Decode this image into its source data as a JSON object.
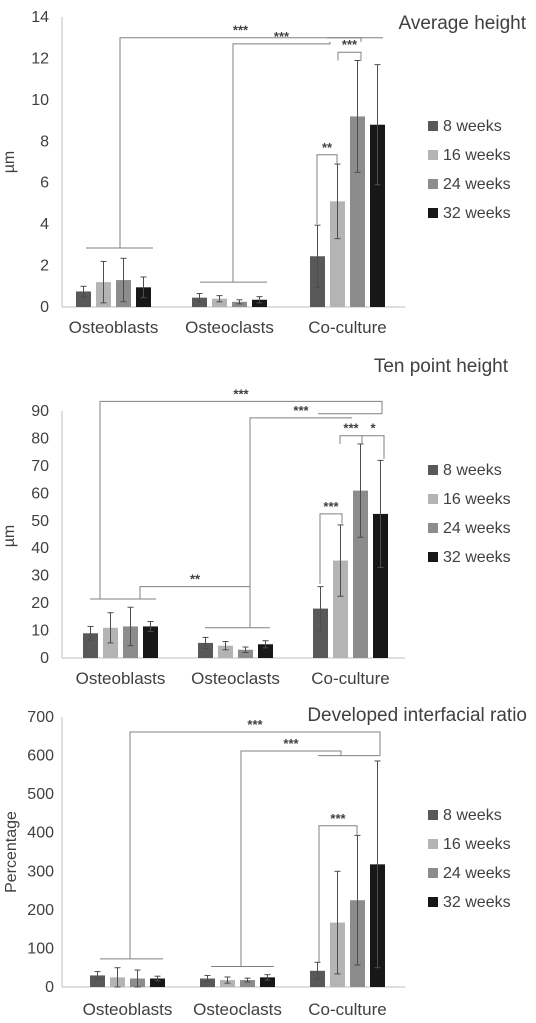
{
  "chart_data": [
    {
      "type": "bar",
      "title": "Average height",
      "ylabel": "µm",
      "xlabel": "",
      "ylim": [
        0,
        14
      ],
      "yticks": [
        "0",
        "2",
        "4",
        "6",
        "8",
        "10",
        "12",
        "14"
      ],
      "categories": [
        "Osteoblasts",
        "Osteoclasts",
        "Co-culture"
      ],
      "series": [
        {
          "name": "8 weeks",
          "color": "#595959",
          "values": [
            0.75,
            0.45,
            2.45
          ],
          "errors": [
            0.25,
            0.2,
            1.5
          ]
        },
        {
          "name": "16 weeks",
          "color": "#b4b4b4",
          "values": [
            1.2,
            0.4,
            5.1
          ],
          "errors": [
            1.0,
            0.15,
            1.8
          ]
        },
        {
          "name": "24 weeks",
          "color": "#8c8c8c",
          "values": [
            1.3,
            0.25,
            9.2
          ],
          "errors": [
            1.05,
            0.1,
            2.7
          ]
        },
        {
          "name": "32 weeks",
          "color": "#171717",
          "values": [
            0.95,
            0.35,
            8.8
          ],
          "errors": [
            0.5,
            0.15,
            2.9
          ]
        }
      ],
      "significance": [
        "***",
        "***",
        "***",
        "**"
      ],
      "legend": "right"
    },
    {
      "type": "bar",
      "title": "Ten point height",
      "ylabel": "µm",
      "xlabel": "",
      "ylim": [
        0,
        90
      ],
      "yticks": [
        "0",
        "10",
        "20",
        "30",
        "40",
        "50",
        "60",
        "70",
        "80",
        "90"
      ],
      "categories": [
        "Osteoblasts",
        "Osteoclasts",
        "Co-culture"
      ],
      "series": [
        {
          "name": "8 weeks",
          "color": "#595959",
          "values": [
            9,
            5.5,
            18
          ],
          "errors": [
            2.5,
            2,
            8
          ]
        },
        {
          "name": "16 weeks",
          "color": "#b4b4b4",
          "values": [
            11,
            4.5,
            35.5
          ],
          "errors": [
            5.5,
            1.5,
            13
          ]
        },
        {
          "name": "24 weeks",
          "color": "#8c8c8c",
          "values": [
            11.5,
            3,
            61
          ],
          "errors": [
            7,
            1,
            17
          ]
        },
        {
          "name": "32 weeks",
          "color": "#171717",
          "values": [
            11.5,
            5,
            52.5
          ],
          "errors": [
            1.8,
            1.3,
            19.5
          ]
        }
      ],
      "significance": [
        "***",
        "***",
        "***",
        "*",
        "***",
        "**"
      ],
      "legend": "right"
    },
    {
      "type": "bar",
      "title": "Developed interfacial ratio",
      "ylabel": "Percentage",
      "xlabel": "",
      "ylim": [
        0,
        700
      ],
      "yticks": [
        "0",
        "100",
        "200",
        "300",
        "400",
        "500",
        "600",
        "700"
      ],
      "categories": [
        "Osteoblasts",
        "Osteoclasts",
        "Co-culture"
      ],
      "series": [
        {
          "name": "8 weeks",
          "color": "#595959",
          "values": [
            30,
            22,
            42
          ],
          "errors": [
            10,
            8,
            22
          ]
        },
        {
          "name": "16 weeks",
          "color": "#b4b4b4",
          "values": [
            25,
            18,
            167
          ],
          "errors": [
            25,
            8,
            133
          ]
        },
        {
          "name": "24 weeks",
          "color": "#8c8c8c",
          "values": [
            22,
            18,
            225
          ],
          "errors": [
            22,
            5,
            168
          ]
        },
        {
          "name": "32 weeks",
          "color": "#171717",
          "values": [
            22,
            25,
            318
          ],
          "errors": [
            6,
            7,
            268
          ]
        }
      ],
      "significance": [
        "***",
        "***",
        "***"
      ],
      "legend": "right"
    }
  ]
}
